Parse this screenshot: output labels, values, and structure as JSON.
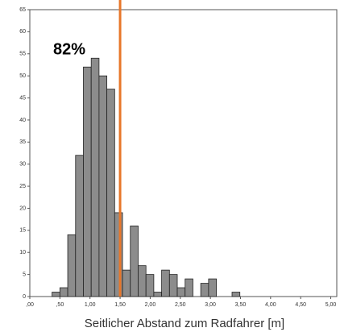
{
  "chart_data": {
    "type": "histogram",
    "xlabel": "Seitlicher Abstand zum Radfahrer [m]",
    "annotation": "82%",
    "bins": [
      0.37,
      0.5,
      0.63,
      0.76,
      0.89,
      1.02,
      1.15,
      1.28,
      1.41,
      1.54,
      1.67,
      1.8,
      1.93,
      2.06,
      2.19,
      2.32,
      2.45,
      2.58,
      2.71,
      2.84,
      2.97,
      3.1,
      3.23,
      3.36,
      3.49
    ],
    "values": [
      1,
      2,
      14,
      32,
      52,
      54,
      50,
      47,
      19,
      6,
      16,
      7,
      5,
      1,
      6,
      5,
      2,
      4,
      0,
      3,
      4,
      0,
      0,
      1
    ],
    "color": "#8c8c8c",
    "vline": 1.5,
    "vline_color": "#e8772a",
    "xlim": [
      0,
      5.1
    ],
    "ylim": [
      0,
      65
    ],
    "xticks": [
      {
        "value": 0,
        "label": ",00"
      },
      {
        "value": 0.5,
        "label": ",50"
      },
      {
        "value": 1,
        "label": "1,00"
      },
      {
        "value": 1.5,
        "label": "1,50"
      },
      {
        "value": 2,
        "label": "2,00"
      },
      {
        "value": 2.5,
        "label": "2,50"
      },
      {
        "value": 3,
        "label": "3,00"
      },
      {
        "value": 3.5,
        "label": "3,50"
      },
      {
        "value": 4,
        "label": "4,00"
      },
      {
        "value": 4.5,
        "label": "4,50"
      },
      {
        "value": 5,
        "label": "5,00"
      }
    ],
    "yticks": [
      0,
      5,
      10,
      15,
      20,
      25,
      30,
      35,
      40,
      45,
      50,
      55,
      60,
      65
    ]
  }
}
